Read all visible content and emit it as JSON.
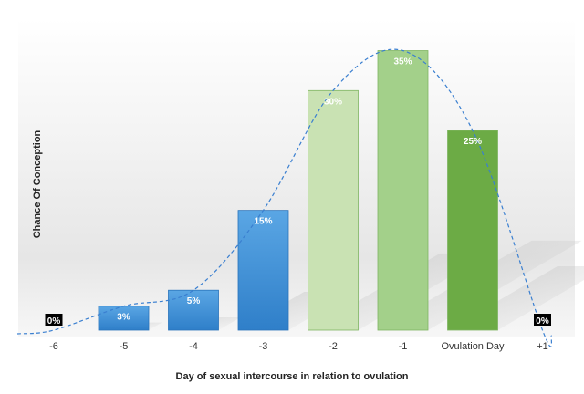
{
  "chart_data": {
    "type": "bar",
    "title": "",
    "xlabel": "Day of sexual intercourse in relation to ovulation",
    "ylabel": "Chance Of Conception",
    "categories": [
      "-6",
      "-5",
      "-4",
      "-3",
      "-2",
      "-1",
      "Ovulation Day",
      "+1"
    ],
    "values": [
      0,
      3,
      5,
      15,
      30,
      35,
      25,
      0
    ],
    "data_labels": [
      "0%",
      "3%",
      "5%",
      "15%",
      "30%",
      "35%",
      "25%",
      "0%"
    ],
    "ylim": [
      0,
      37
    ],
    "grid": false,
    "legend": "none",
    "trendline": "dashed smooth curve",
    "colors": {
      "bar_blue_light": "#5aa6e4",
      "bar_blue_dark": "#2f7fc9",
      "bar_green_pale": "#c9e2b3",
      "bar_green_mid": "#a3d08a",
      "bar_green_dark": "#6cab45",
      "trend": "#3a7fd0",
      "zero_label_bg": "#000000"
    },
    "bar_colors": [
      "zero",
      "blue",
      "blue",
      "blue",
      "green_pale",
      "green_mid",
      "green_dark",
      "zero"
    ]
  }
}
